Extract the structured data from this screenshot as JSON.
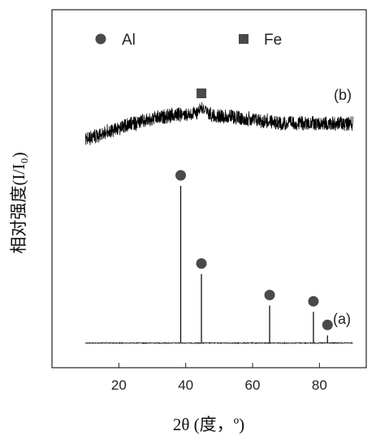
{
  "chart_data": {
    "type": "line",
    "xlabel": "2θ (度，º)",
    "ylabel": "相对强度(I/I₀)",
    "xlim": [
      0,
      94
    ],
    "x_ticks": [
      20,
      40,
      60,
      80
    ],
    "x_tick_labels": [
      "20",
      "40",
      "60",
      "80"
    ],
    "grid": false,
    "legend": [
      {
        "label": "Al",
        "marker": "circle",
        "color": "#4a4a4a"
      },
      {
        "label": "Fe",
        "marker": "square",
        "color": "#4a4a4a"
      }
    ],
    "legend_position": "top",
    "series": [
      {
        "name": "(a)",
        "x_range": [
          10,
          90
        ],
        "baseline": 0.02,
        "peaks": [
          {
            "x": 38.5,
            "height": 1.0,
            "phase": "Al"
          },
          {
            "x": 44.7,
            "height": 0.44,
            "phase": "Al"
          },
          {
            "x": 65.1,
            "height": 0.24,
            "phase": "Al"
          },
          {
            "x": 78.2,
            "height": 0.2,
            "phase": "Al"
          },
          {
            "x": 82.4,
            "height": 0.05,
            "phase": "Al"
          }
        ]
      },
      {
        "name": "(b)",
        "x_range": [
          10,
          90
        ],
        "amorphous": true,
        "broad_hump_center": 44.7,
        "peaks": [
          {
            "x": 44.7,
            "phase": "Fe"
          }
        ]
      }
    ]
  }
}
